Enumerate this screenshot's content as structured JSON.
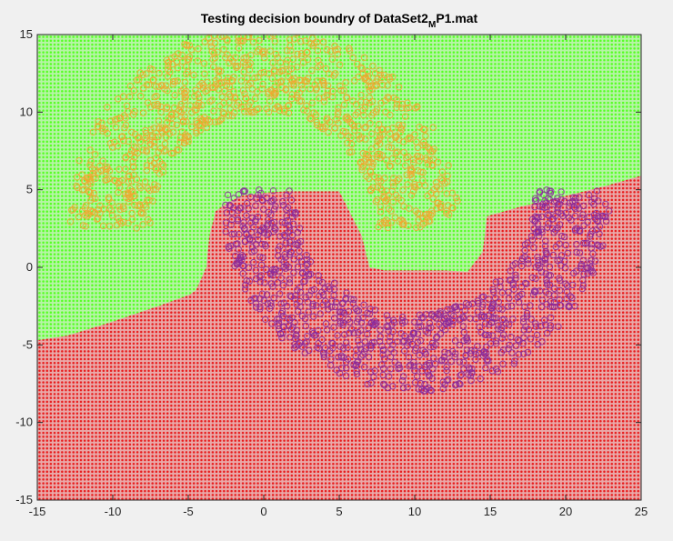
{
  "chart_data": {
    "type": "scatter",
    "title": {
      "main": "Testing decision boundry of DataSet2",
      "subscript": "M",
      "suffix": "P1.mat"
    },
    "xlabel": "",
    "ylabel": "",
    "xlim": [
      -15,
      25
    ],
    "ylim": [
      -15,
      15
    ],
    "x_ticks": [
      -15,
      -10,
      -5,
      0,
      5,
      10,
      15,
      20,
      25
    ],
    "y_ticks": [
      -15,
      -10,
      -5,
      0,
      5,
      10,
      15
    ],
    "grid": false,
    "legend": "none",
    "background_grid_step": 0.25,
    "colors": {
      "region_class_1": "#55ff22",
      "region_class_2": "#e81c1c",
      "region_fill_class_1": "#b6f4a6",
      "region_fill_class_2": "#e9a9a9",
      "points_class_1": "#f0a830",
      "points_class_2": "#8a2a9c"
    },
    "boundary_polyline": [
      [
        -15,
        -4.7
      ],
      [
        -13,
        -4.4
      ],
      [
        -10,
        -3.5
      ],
      [
        -7,
        -2.5
      ],
      [
        -5,
        -1.8
      ],
      [
        -4.5,
        -1.5
      ],
      [
        -3.8,
        0.0
      ],
      [
        -3.6,
        2.0
      ],
      [
        -3.2,
        3.6
      ],
      [
        -2.5,
        4.1
      ],
      [
        -1.5,
        4.6
      ],
      [
        0,
        4.8
      ],
      [
        1.5,
        4.9
      ],
      [
        2.5,
        4.9
      ],
      [
        3.5,
        4.9
      ],
      [
        5,
        4.9
      ],
      [
        6.5,
        2.0
      ],
      [
        7,
        0.0
      ],
      [
        8,
        -0.2
      ],
      [
        9,
        -0.2
      ],
      [
        11,
        -0.2
      ],
      [
        12,
        -0.2
      ],
      [
        13.5,
        -0.3
      ],
      [
        14.5,
        1.0
      ],
      [
        14.8,
        3.3
      ],
      [
        17,
        3.9
      ],
      [
        20,
        4.6
      ],
      [
        22.5,
        5.2
      ],
      [
        25,
        5.9
      ]
    ],
    "series": [
      {
        "class": 1,
        "arc": {
          "center": [
            0,
            2.5
          ],
          "r_inner": 7.5,
          "r_outer": 13,
          "angle_deg": [
            0,
            180
          ]
        },
        "n_points": 1000
      },
      {
        "class": 2,
        "arc": {
          "center": [
            10,
            5
          ],
          "r_inner": 8,
          "r_outer": 13,
          "angle_deg": [
            180,
            360
          ]
        },
        "n_points": 1000
      }
    ]
  }
}
